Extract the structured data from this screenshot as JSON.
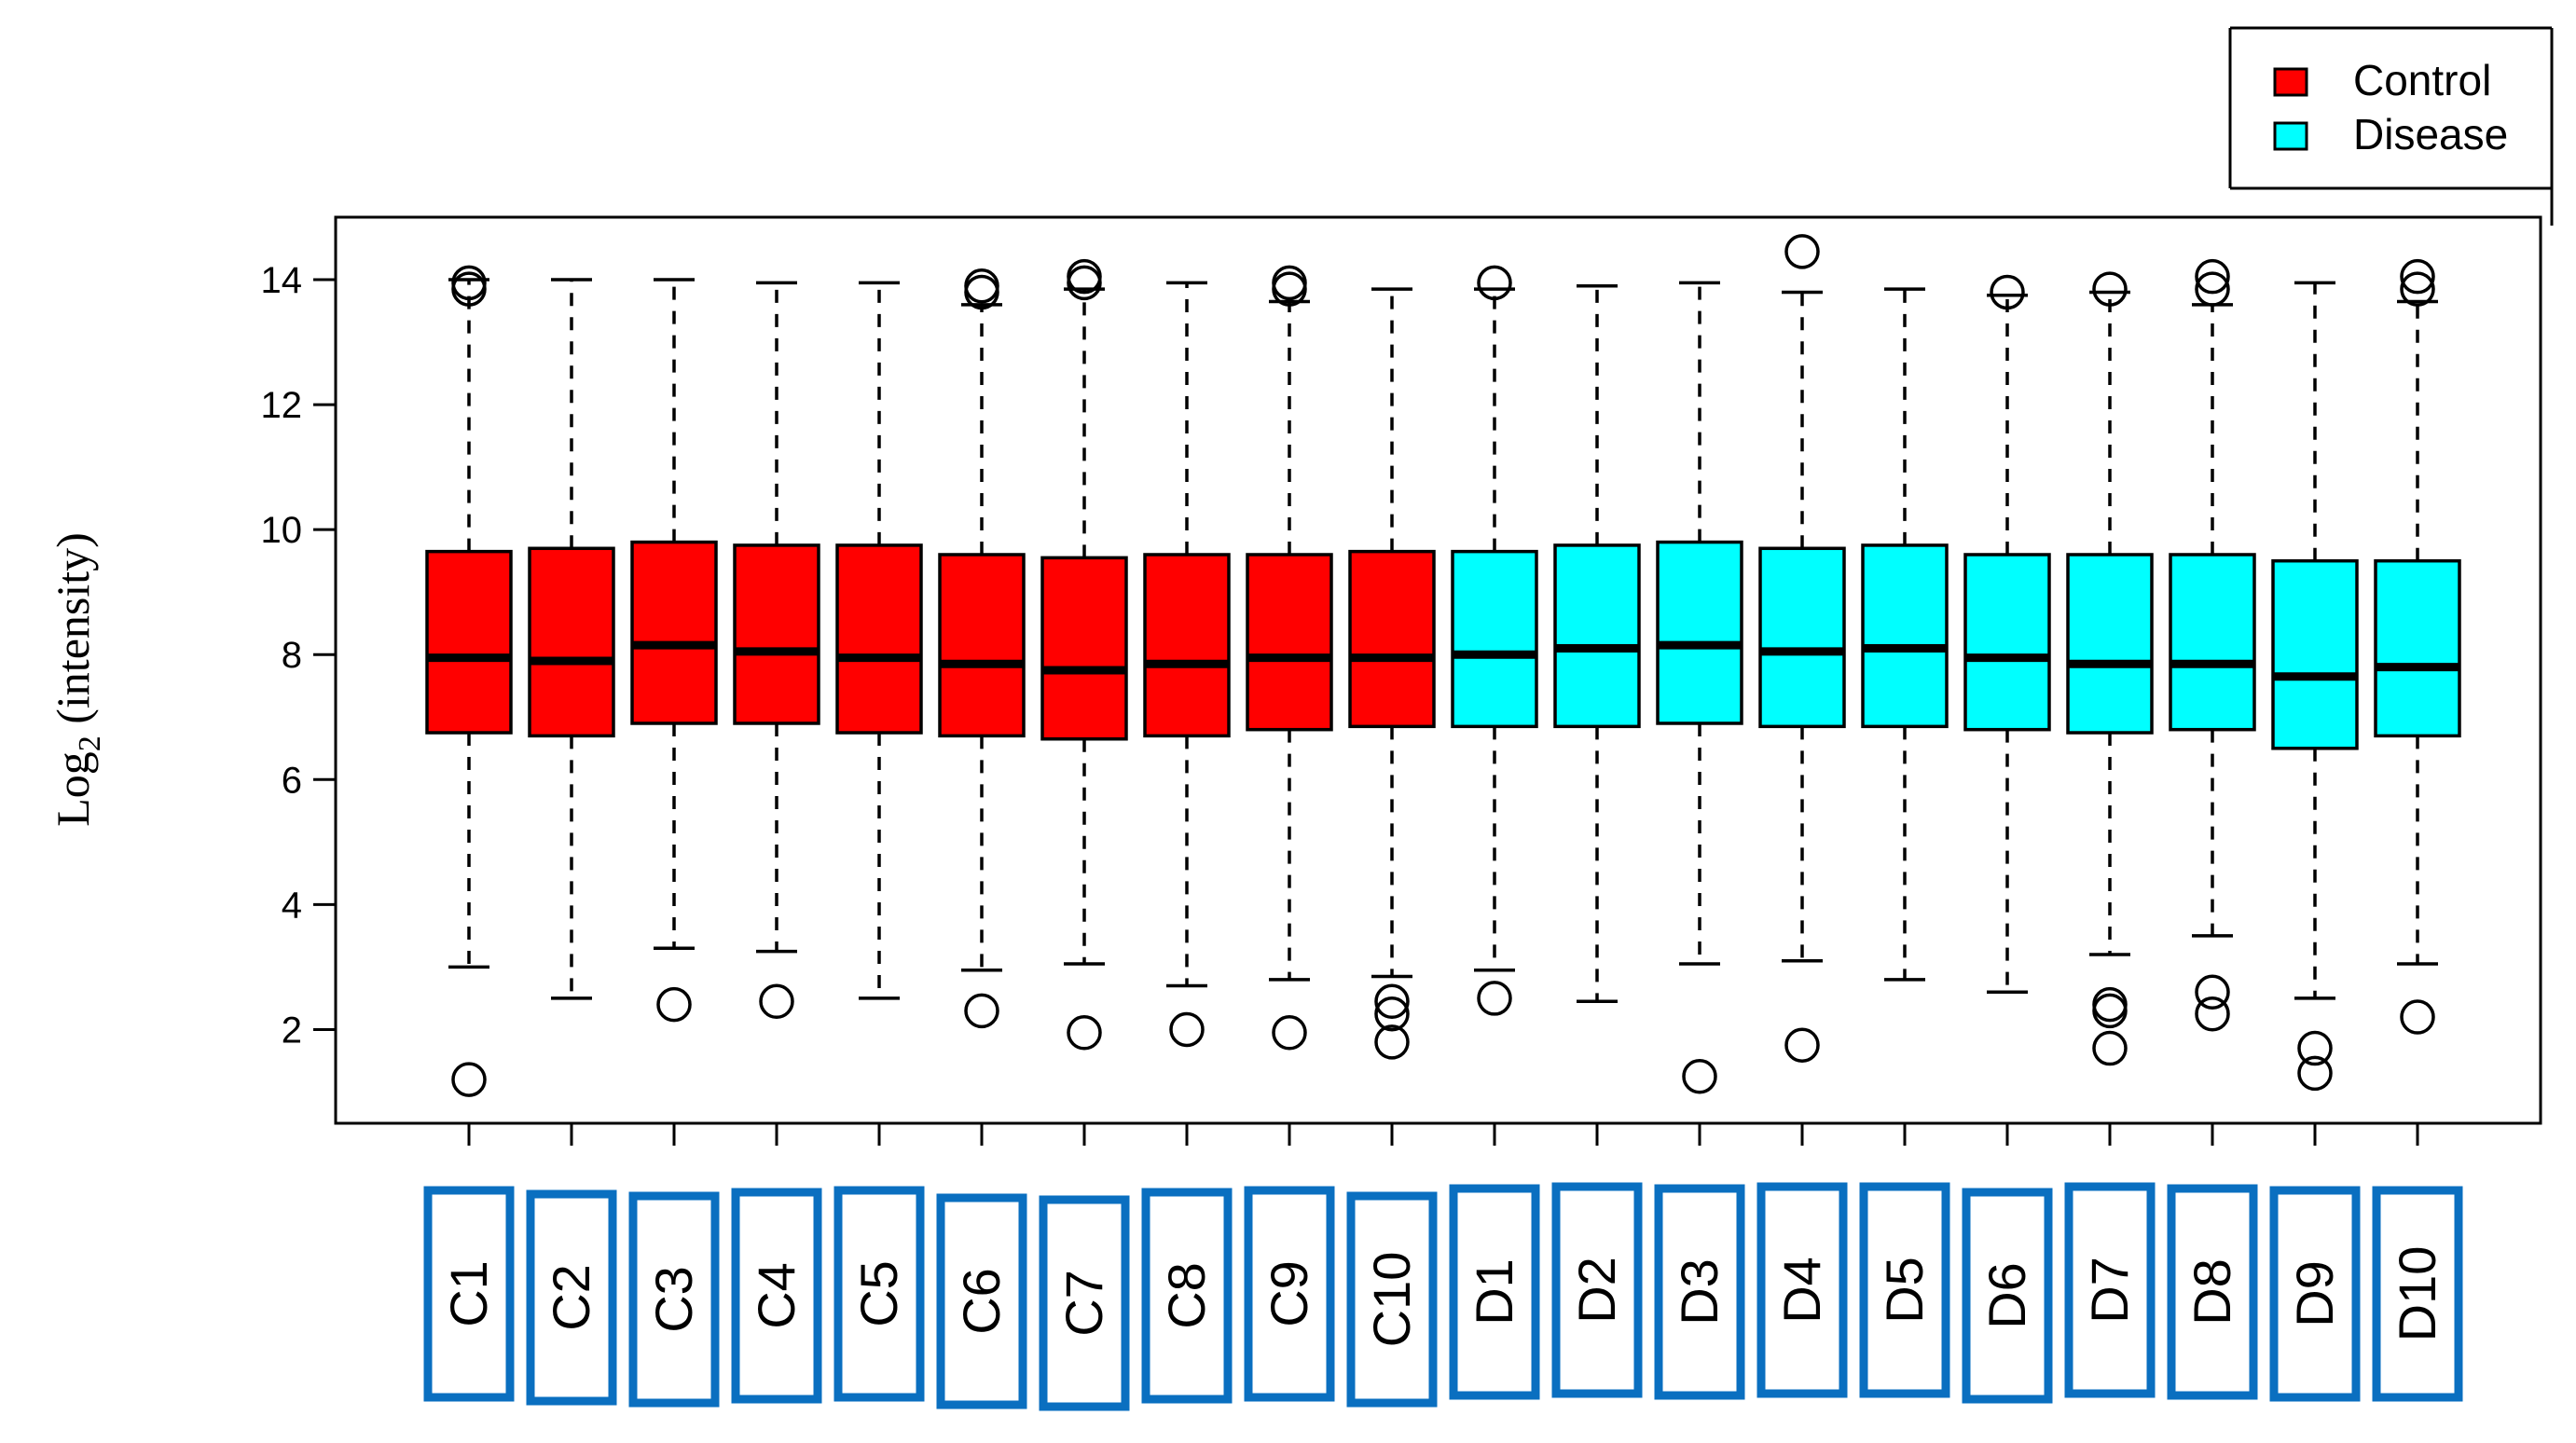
{
  "chart_data": {
    "type": "boxplot",
    "ylabel_base": "Log",
    "ylabel_sub": "2",
    "ylabel_rest": " (intensity)",
    "ylim": [
      0.5,
      15.0
    ],
    "yticks": [
      2,
      4,
      6,
      8,
      10,
      12,
      14
    ],
    "grid": false,
    "legend_position": "top-right",
    "legend": [
      {
        "name": "Control",
        "color": "#ff0000"
      },
      {
        "name": "Disease",
        "color": "#00ffff"
      }
    ],
    "label_box_color": "#0a6fc0",
    "categories": [
      "C1",
      "C2",
      "C3",
      "C4",
      "C5",
      "C6",
      "C7",
      "C8",
      "C9",
      "C10",
      "D1",
      "D2",
      "D3",
      "D4",
      "D5",
      "D6",
      "D7",
      "D8",
      "D9",
      "D10"
    ],
    "series": [
      {
        "name": "Control",
        "color": "#ff0000",
        "boxes": [
          {
            "label": "C1",
            "whisker_low": 3.0,
            "q1": 6.75,
            "median": 7.95,
            "q3": 9.65,
            "whisker_high": 14.0,
            "outliers": [
              1.2,
              13.95,
              13.85
            ]
          },
          {
            "label": "C2",
            "whisker_low": 2.5,
            "q1": 6.7,
            "median": 7.9,
            "q3": 9.7,
            "whisker_high": 14.0,
            "outliers": []
          },
          {
            "label": "C3",
            "whisker_low": 3.3,
            "q1": 6.9,
            "median": 8.15,
            "q3": 9.8,
            "whisker_high": 14.0,
            "outliers": [
              2.4
            ]
          },
          {
            "label": "C4",
            "whisker_low": 3.25,
            "q1": 6.9,
            "median": 8.05,
            "q3": 9.75,
            "whisker_high": 13.95,
            "outliers": [
              2.45
            ]
          },
          {
            "label": "C5",
            "whisker_low": 2.5,
            "q1": 6.75,
            "median": 7.95,
            "q3": 9.75,
            "whisker_high": 13.95,
            "outliers": []
          },
          {
            "label": "C6",
            "whisker_low": 2.95,
            "q1": 6.7,
            "median": 7.85,
            "q3": 9.6,
            "whisker_high": 13.6,
            "outliers": [
              2.3,
              13.8,
              13.9
            ]
          },
          {
            "label": "C7",
            "whisker_low": 3.05,
            "q1": 6.65,
            "median": 7.75,
            "q3": 9.55,
            "whisker_high": 13.85,
            "outliers": [
              1.95,
              14.05,
              13.95
            ]
          },
          {
            "label": "C8",
            "whisker_low": 2.7,
            "q1": 6.7,
            "median": 7.85,
            "q3": 9.6,
            "whisker_high": 13.95,
            "outliers": [
              2.0
            ]
          },
          {
            "label": "C9",
            "whisker_low": 2.8,
            "q1": 6.8,
            "median": 7.95,
            "q3": 9.6,
            "whisker_high": 13.65,
            "outliers": [
              1.95,
              13.85,
              13.95
            ]
          },
          {
            "label": "C10",
            "whisker_low": 2.85,
            "q1": 6.85,
            "median": 7.95,
            "q3": 9.65,
            "whisker_high": 13.85,
            "outliers": [
              1.8,
              2.25,
              2.45
            ]
          }
        ]
      },
      {
        "name": "Disease",
        "color": "#00ffff",
        "boxes": [
          {
            "label": "D1",
            "whisker_low": 2.95,
            "q1": 6.85,
            "median": 8.0,
            "q3": 9.65,
            "whisker_high": 13.85,
            "outliers": [
              2.5,
              13.95
            ]
          },
          {
            "label": "D2",
            "whisker_low": 2.45,
            "q1": 6.85,
            "median": 8.1,
            "q3": 9.75,
            "whisker_high": 13.9,
            "outliers": []
          },
          {
            "label": "D3",
            "whisker_low": 3.05,
            "q1": 6.9,
            "median": 8.15,
            "q3": 9.8,
            "whisker_high": 13.95,
            "outliers": [
              1.25
            ]
          },
          {
            "label": "D4",
            "whisker_low": 3.1,
            "q1": 6.85,
            "median": 8.05,
            "q3": 9.7,
            "whisker_high": 13.8,
            "outliers": [
              1.75,
              14.45
            ]
          },
          {
            "label": "D5",
            "whisker_low": 2.8,
            "q1": 6.85,
            "median": 8.1,
            "q3": 9.75,
            "whisker_high": 13.85,
            "outliers": []
          },
          {
            "label": "D6",
            "whisker_low": 2.6,
            "q1": 6.8,
            "median": 7.95,
            "q3": 9.6,
            "whisker_high": 13.75,
            "outliers": [
              13.8
            ]
          },
          {
            "label": "D7",
            "whisker_low": 3.2,
            "q1": 6.75,
            "median": 7.85,
            "q3": 9.6,
            "whisker_high": 13.8,
            "outliers": [
              1.7,
              2.3,
              2.4,
              13.85
            ]
          },
          {
            "label": "D8",
            "whisker_low": 3.5,
            "q1": 6.8,
            "median": 7.85,
            "q3": 9.6,
            "whisker_high": 13.6,
            "outliers": [
              2.25,
              2.6,
              13.85,
              14.05
            ]
          },
          {
            "label": "D9",
            "whisker_low": 2.5,
            "q1": 6.5,
            "median": 7.65,
            "q3": 9.5,
            "whisker_high": 13.95,
            "outliers": [
              1.3,
              1.7
            ]
          },
          {
            "label": "D10",
            "whisker_low": 3.05,
            "q1": 6.7,
            "median": 7.8,
            "q3": 9.5,
            "whisker_high": 13.65,
            "outliers": [
              2.2,
              13.85,
              14.05
            ]
          }
        ]
      }
    ]
  }
}
